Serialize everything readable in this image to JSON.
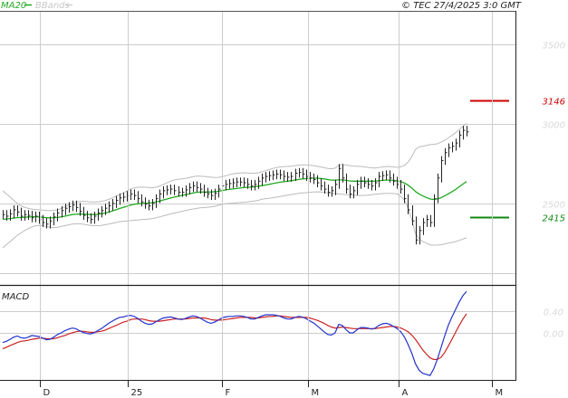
{
  "header": {
    "legend_ma": "MA20",
    "legend_bb": "BBands",
    "copyright": "© TEC 27/4/2025 3:0 GMT",
    "macd_label": "MACD"
  },
  "colors": {
    "price": "#222222",
    "ma20": "#22aa22",
    "bbands": "#bbbbbb",
    "resistance": "#cc0000",
    "support": "#118811",
    "macd": "#2233cc",
    "signal": "#cc2222",
    "grid": "#cccccc",
    "axis_text": "#d8d8d8"
  },
  "chart_data": [
    {
      "type": "line",
      "panel": "price",
      "ylim": [
        20.5,
        37.0
      ],
      "yticks": [
        {
          "value": 35,
          "label": "3500"
        },
        {
          "value": 30,
          "label": "3000"
        },
        {
          "value": 25,
          "label": "2500"
        }
      ],
      "xticks": [
        "D",
        "25",
        "F",
        "M",
        "A",
        "M"
      ],
      "levels": [
        {
          "name": "resistance",
          "value": 31.46,
          "label": "3146"
        },
        {
          "name": "support",
          "value": 24.15,
          "label": "2415"
        }
      ],
      "legend": [
        "MA20",
        "BBands"
      ],
      "close": [
        24.3,
        24.2,
        24.35,
        24.6,
        24.45,
        24.2,
        24.3,
        24.25,
        24.1,
        24.2,
        24.0,
        23.8,
        23.7,
        23.9,
        24.15,
        24.4,
        24.55,
        24.7,
        24.8,
        24.9,
        24.75,
        24.5,
        24.25,
        24.1,
        24.0,
        24.2,
        24.4,
        24.55,
        24.7,
        24.85,
        25.0,
        25.2,
        25.35,
        25.4,
        25.5,
        25.6,
        25.5,
        25.3,
        25.1,
        24.95,
        24.85,
        25.0,
        25.3,
        25.6,
        25.8,
        25.85,
        25.9,
        25.8,
        25.7,
        25.7,
        25.85,
        26.0,
        26.1,
        26.0,
        25.9,
        25.7,
        25.6,
        25.5,
        25.65,
        25.9,
        26.1,
        26.2,
        26.25,
        26.3,
        26.35,
        26.35,
        26.3,
        26.2,
        26.1,
        26.2,
        26.4,
        26.6,
        26.7,
        26.75,
        26.8,
        26.85,
        26.8,
        26.7,
        26.65,
        26.7,
        26.9,
        26.95,
        26.85,
        26.7,
        26.6,
        26.5,
        26.3,
        26.1,
        25.9,
        25.7,
        25.8,
        26.2,
        27.2,
        26.6,
        25.9,
        25.6,
        25.8,
        26.2,
        26.4,
        26.3,
        26.2,
        26.1,
        26.3,
        26.7,
        26.75,
        26.8,
        26.6,
        26.4,
        26.2,
        25.9,
        25.3,
        24.6,
        23.9,
        22.7,
        23.3,
        23.8,
        24.0,
        23.8,
        25.3,
        26.6,
        27.7,
        28.2,
        28.5,
        28.6,
        28.8,
        29.3,
        29.6,
        29.5
      ],
      "ma20": [
        24.0,
        24.02,
        24.05,
        24.08,
        24.11,
        24.12,
        24.13,
        24.15,
        24.16,
        24.17,
        24.15,
        24.13,
        24.1,
        24.09,
        24.1,
        24.12,
        24.15,
        24.2,
        24.25,
        24.3,
        24.32,
        24.33,
        24.33,
        24.32,
        24.3,
        24.3,
        24.32,
        24.35,
        24.4,
        24.45,
        24.52,
        24.6,
        24.68,
        24.75,
        24.82,
        24.9,
        24.95,
        24.98,
        25.0,
        25.02,
        25.03,
        25.05,
        25.1,
        25.15,
        25.22,
        25.28,
        25.34,
        25.4,
        25.45,
        25.5,
        25.55,
        25.6,
        25.65,
        25.7,
        25.72,
        25.72,
        25.72,
        25.72,
        25.74,
        25.77,
        25.81,
        25.85,
        25.88,
        25.91,
        25.94,
        25.97,
        26.0,
        26.02,
        26.03,
        26.05,
        26.08,
        26.12,
        26.16,
        26.2,
        26.25,
        26.3,
        26.34,
        26.37,
        26.4,
        26.43,
        26.47,
        26.51,
        26.54,
        26.56,
        26.58,
        26.59,
        26.59,
        26.57,
        26.54,
        26.5,
        26.47,
        26.46,
        26.48,
        26.48,
        26.45,
        26.42,
        26.4,
        26.4,
        26.4,
        26.4,
        26.4,
        26.4,
        26.41,
        26.43,
        26.45,
        26.47,
        26.47,
        26.45,
        26.42,
        26.37,
        26.28,
        26.15,
        25.98,
        25.75,
        25.6,
        25.47,
        25.37,
        25.28,
        25.25,
        25.28,
        25.36,
        25.47,
        25.6,
        25.74,
        25.88,
        26.05,
        26.22,
        26.38
      ],
      "bb_upper": [
        25.8,
        25.6,
        25.4,
        25.2,
        25.0,
        24.85,
        24.75,
        24.7,
        24.65,
        24.62,
        24.6,
        24.58,
        24.56,
        24.55,
        24.56,
        24.6,
        24.68,
        24.78,
        24.9,
        25.0,
        25.08,
        25.12,
        25.13,
        25.12,
        25.1,
        25.09,
        25.1,
        25.13,
        25.18,
        25.25,
        25.34,
        25.45,
        25.56,
        25.67,
        25.78,
        25.9,
        25.98,
        26.02,
        26.03,
        26.02,
        26.0,
        25.99,
        26.02,
        26.1,
        26.2,
        26.3,
        26.4,
        26.48,
        26.52,
        26.54,
        26.57,
        26.62,
        26.68,
        26.72,
        26.72,
        26.7,
        26.68,
        26.65,
        26.63,
        26.64,
        26.68,
        26.74,
        26.8,
        26.86,
        26.9,
        26.92,
        26.93,
        26.92,
        26.9,
        26.9,
        26.93,
        26.99,
        27.06,
        27.13,
        27.2,
        27.26,
        27.3,
        27.32,
        27.33,
        27.34,
        27.37,
        27.41,
        27.43,
        27.43,
        27.41,
        27.38,
        27.34,
        27.3,
        27.25,
        27.2,
        27.18,
        27.22,
        27.4,
        27.45,
        27.42,
        27.38,
        27.35,
        27.34,
        27.33,
        27.3,
        27.27,
        27.24,
        27.23,
        27.26,
        27.3,
        27.33,
        27.32,
        27.3,
        27.27,
        27.3,
        27.4,
        27.6,
        27.95,
        28.4,
        28.55,
        28.6,
        28.65,
        28.7,
        28.72,
        28.75,
        28.85,
        28.98,
        29.12,
        29.28,
        29.45,
        29.65,
        29.85,
        30.05
      ],
      "bb_lower": [
        22.2,
        22.4,
        22.6,
        22.8,
        23.0,
        23.15,
        23.3,
        23.42,
        23.52,
        23.6,
        23.62,
        23.6,
        23.55,
        23.5,
        23.48,
        23.5,
        23.55,
        23.6,
        23.65,
        23.7,
        23.72,
        23.72,
        23.7,
        23.66,
        23.62,
        23.6,
        23.6,
        23.62,
        23.66,
        23.7,
        23.75,
        23.8,
        23.85,
        23.88,
        23.9,
        23.92,
        23.94,
        23.96,
        23.98,
        24.0,
        24.02,
        24.05,
        24.1,
        24.16,
        24.22,
        24.28,
        24.34,
        24.4,
        24.45,
        24.5,
        24.55,
        24.6,
        24.65,
        24.68,
        24.72,
        24.74,
        24.76,
        24.78,
        24.82,
        24.88,
        24.94,
        24.98,
        25.0,
        25.02,
        25.04,
        25.06,
        25.08,
        25.1,
        25.12,
        25.16,
        25.2,
        25.26,
        25.3,
        25.33,
        25.36,
        25.4,
        25.44,
        25.48,
        25.52,
        25.56,
        25.6,
        25.64,
        25.66,
        25.68,
        25.7,
        25.72,
        25.73,
        25.72,
        25.7,
        25.67,
        25.64,
        25.62,
        25.6,
        25.58,
        25.56,
        25.54,
        25.52,
        25.5,
        25.5,
        25.5,
        25.52,
        25.55,
        25.58,
        25.6,
        25.62,
        25.63,
        25.63,
        25.62,
        25.6,
        25.45,
        25.2,
        24.7,
        24.0,
        23.1,
        22.8,
        22.6,
        22.5,
        22.4,
        22.38,
        22.38,
        22.4,
        22.45,
        22.5,
        22.55,
        22.6,
        22.68,
        22.76,
        22.84
      ]
    },
    {
      "type": "line",
      "panel": "macd",
      "ylim": [
        -0.85,
        0.85
      ],
      "yticks": [
        {
          "value": 0.4,
          "label": "0.40"
        },
        {
          "value": 0.0,
          "label": "0.00"
        }
      ],
      "series": [
        {
          "name": "",
          "values": [
            -0.18,
            -0.16,
            -0.12,
            -0.08,
            -0.06,
            -0.09,
            -0.1,
            -0.08,
            -0.05,
            -0.06,
            -0.07,
            -0.1,
            -0.13,
            -0.12,
            -0.08,
            -0.03,
            0.0,
            0.04,
            0.07,
            0.09,
            0.08,
            0.04,
            0.01,
            -0.01,
            -0.02,
            0.0,
            0.04,
            0.08,
            0.13,
            0.18,
            0.22,
            0.26,
            0.29,
            0.3,
            0.32,
            0.33,
            0.31,
            0.27,
            0.22,
            0.18,
            0.16,
            0.17,
            0.21,
            0.25,
            0.28,
            0.29,
            0.3,
            0.28,
            0.26,
            0.25,
            0.27,
            0.3,
            0.32,
            0.31,
            0.28,
            0.24,
            0.2,
            0.18,
            0.2,
            0.24,
            0.28,
            0.3,
            0.31,
            0.31,
            0.32,
            0.32,
            0.31,
            0.29,
            0.26,
            0.26,
            0.29,
            0.32,
            0.34,
            0.34,
            0.34,
            0.33,
            0.31,
            0.28,
            0.26,
            0.26,
            0.29,
            0.31,
            0.3,
            0.27,
            0.23,
            0.19,
            0.14,
            0.08,
            0.02,
            -0.03,
            -0.04,
            0.0,
            0.16,
            0.14,
            0.06,
            0.0,
            0.0,
            0.06,
            0.1,
            0.1,
            0.09,
            0.07,
            0.09,
            0.14,
            0.17,
            0.18,
            0.16,
            0.12,
            0.08,
            0.02,
            -0.08,
            -0.22,
            -0.38,
            -0.58,
            -0.7,
            -0.76,
            -0.78,
            -0.8,
            -0.68,
            -0.5,
            -0.28,
            -0.06,
            0.14,
            0.3,
            0.44,
            0.58,
            0.7,
            0.78
          ]
        },
        {
          "name": "",
          "values": [
            -0.3,
            -0.27,
            -0.24,
            -0.21,
            -0.18,
            -0.16,
            -0.15,
            -0.14,
            -0.12,
            -0.11,
            -0.1,
            -0.1,
            -0.11,
            -0.11,
            -0.11,
            -0.09,
            -0.07,
            -0.05,
            -0.02,
            0.0,
            0.02,
            0.03,
            0.03,
            0.02,
            0.01,
            0.01,
            0.02,
            0.03,
            0.05,
            0.08,
            0.11,
            0.14,
            0.17,
            0.2,
            0.22,
            0.25,
            0.26,
            0.26,
            0.26,
            0.25,
            0.23,
            0.22,
            0.22,
            0.22,
            0.23,
            0.24,
            0.25,
            0.26,
            0.26,
            0.26,
            0.26,
            0.27,
            0.28,
            0.28,
            0.28,
            0.28,
            0.27,
            0.25,
            0.24,
            0.24,
            0.24,
            0.25,
            0.26,
            0.27,
            0.28,
            0.29,
            0.29,
            0.29,
            0.29,
            0.28,
            0.28,
            0.29,
            0.3,
            0.31,
            0.31,
            0.32,
            0.32,
            0.31,
            0.3,
            0.29,
            0.29,
            0.29,
            0.29,
            0.29,
            0.28,
            0.26,
            0.24,
            0.21,
            0.18,
            0.14,
            0.11,
            0.09,
            0.1,
            0.11,
            0.1,
            0.09,
            0.08,
            0.08,
            0.08,
            0.08,
            0.08,
            0.08,
            0.08,
            0.09,
            0.1,
            0.11,
            0.12,
            0.12,
            0.11,
            0.09,
            0.06,
            0.02,
            -0.04,
            -0.12,
            -0.22,
            -0.32,
            -0.4,
            -0.47,
            -0.5,
            -0.5,
            -0.46,
            -0.37,
            -0.25,
            -0.12,
            0.01,
            0.14,
            0.26,
            0.36
          ]
        }
      ]
    }
  ]
}
